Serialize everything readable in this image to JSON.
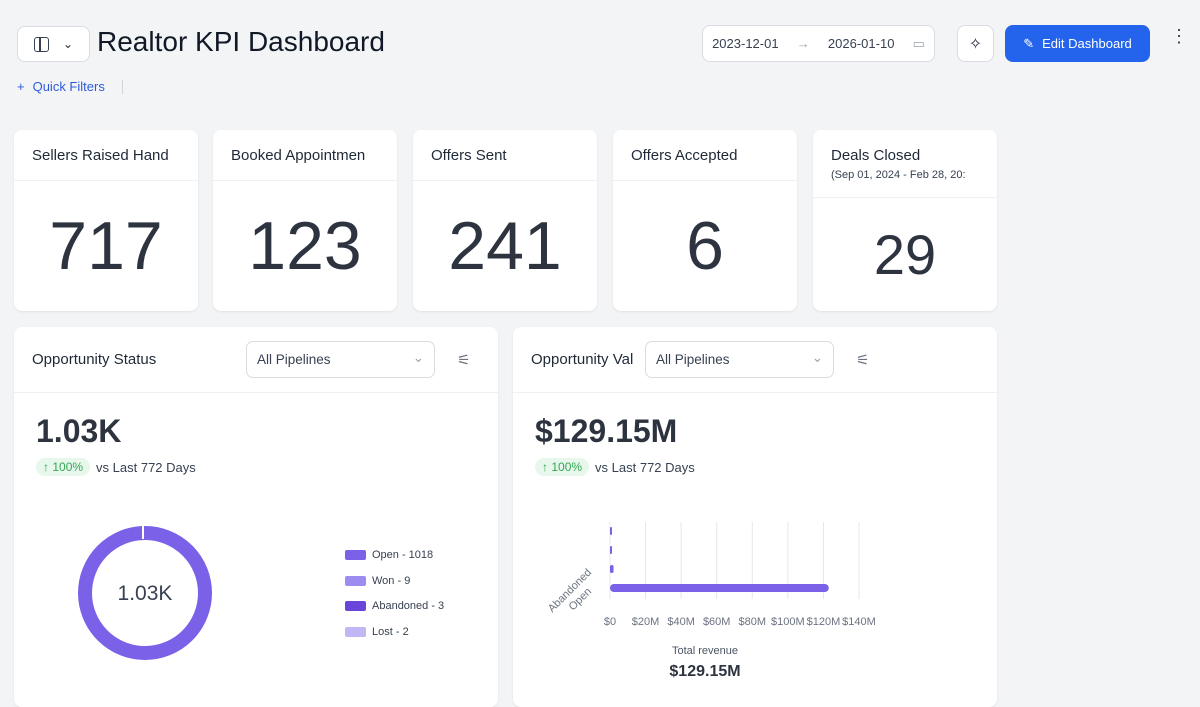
{
  "header": {
    "title": "Realtor KPI Dashboard",
    "quick_filters": "Quick Filters",
    "date_from": "2023-12-01",
    "date_to": "2026-01-10",
    "edit_label": "Edit Dashboard"
  },
  "kpis": [
    {
      "title": "Sellers Raised Hand",
      "value": "717"
    },
    {
      "title": "Booked Appointmen",
      "value": "123"
    },
    {
      "title": "Offers Sent",
      "value": "241"
    },
    {
      "title": "Offers Accepted",
      "value": "6"
    },
    {
      "title": "Deals Closed",
      "subtitle": "(Sep 01, 2024 - Feb 28, 20:",
      "value": "29"
    }
  ],
  "status": {
    "title": "Opportunity Status",
    "pipeline": "All Pipelines",
    "total": "1.03K",
    "change": "100%",
    "vs": "vs Last 772 Days",
    "center": "1.03K",
    "legend": [
      {
        "label": "Open - 1018",
        "color": "#7b61e8"
      },
      {
        "label": "Won - 9",
        "color": "#9d8cf0"
      },
      {
        "label": "Abandoned - 3",
        "color": "#6a45d9"
      },
      {
        "label": "Lost - 2",
        "color": "#c2b7f5"
      }
    ]
  },
  "value": {
    "title": "Opportunity Val",
    "pipeline": "All Pipelines",
    "total": "$129.15M",
    "change": "100%",
    "vs": "vs Last 772 Days",
    "footer_label": "Total revenue",
    "footer_value": "$129.15M"
  },
  "chart_data": [
    {
      "type": "pie",
      "values": [
        1018,
        9,
        3,
        2
      ],
      "categories": [
        "Open",
        "Won",
        "Abandoned",
        "Lost"
      ]
    },
    {
      "type": "bar",
      "orientation": "horizontal",
      "categories": [
        "",
        "",
        "Abandoned",
        "Open"
      ],
      "values": [
        0.2,
        0.5,
        2,
        123
      ],
      "xlim": [
        0,
        140
      ],
      "tick_labels": [
        "$0",
        "$20M",
        "$40M",
        "$60M",
        "$80M",
        "$100M",
        "$120M",
        "$140M"
      ],
      "color": "#7b61e8"
    }
  ]
}
